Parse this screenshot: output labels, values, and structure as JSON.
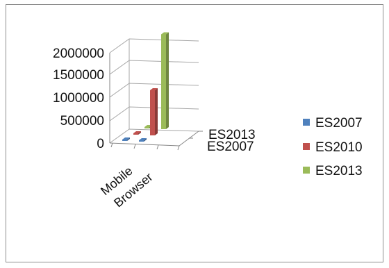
{
  "chart_data": {
    "type": "bar",
    "style": "3d-column",
    "categories": [
      "Mobile",
      "Browser"
    ],
    "series": [
      {
        "name": "ES2007",
        "color": "#4f81bd",
        "values": [
          1500,
          30000
        ]
      },
      {
        "name": "ES2010",
        "color": "#c0504d",
        "values": [
          3000,
          1000000
        ]
      },
      {
        "name": "ES2013",
        "color": "#9bbb59",
        "values": [
          4000,
          2100000
        ]
      }
    ],
    "depth_axis_labels": [
      "ES2013",
      "ES2007"
    ],
    "y_ticks": [
      "2000000",
      "1500000",
      "1000000",
      "500000",
      "0"
    ],
    "ylim": [
      0,
      2000000
    ],
    "grid": true,
    "legend_position": "right",
    "title": "",
    "xlabel": "",
    "ylabel": ""
  }
}
